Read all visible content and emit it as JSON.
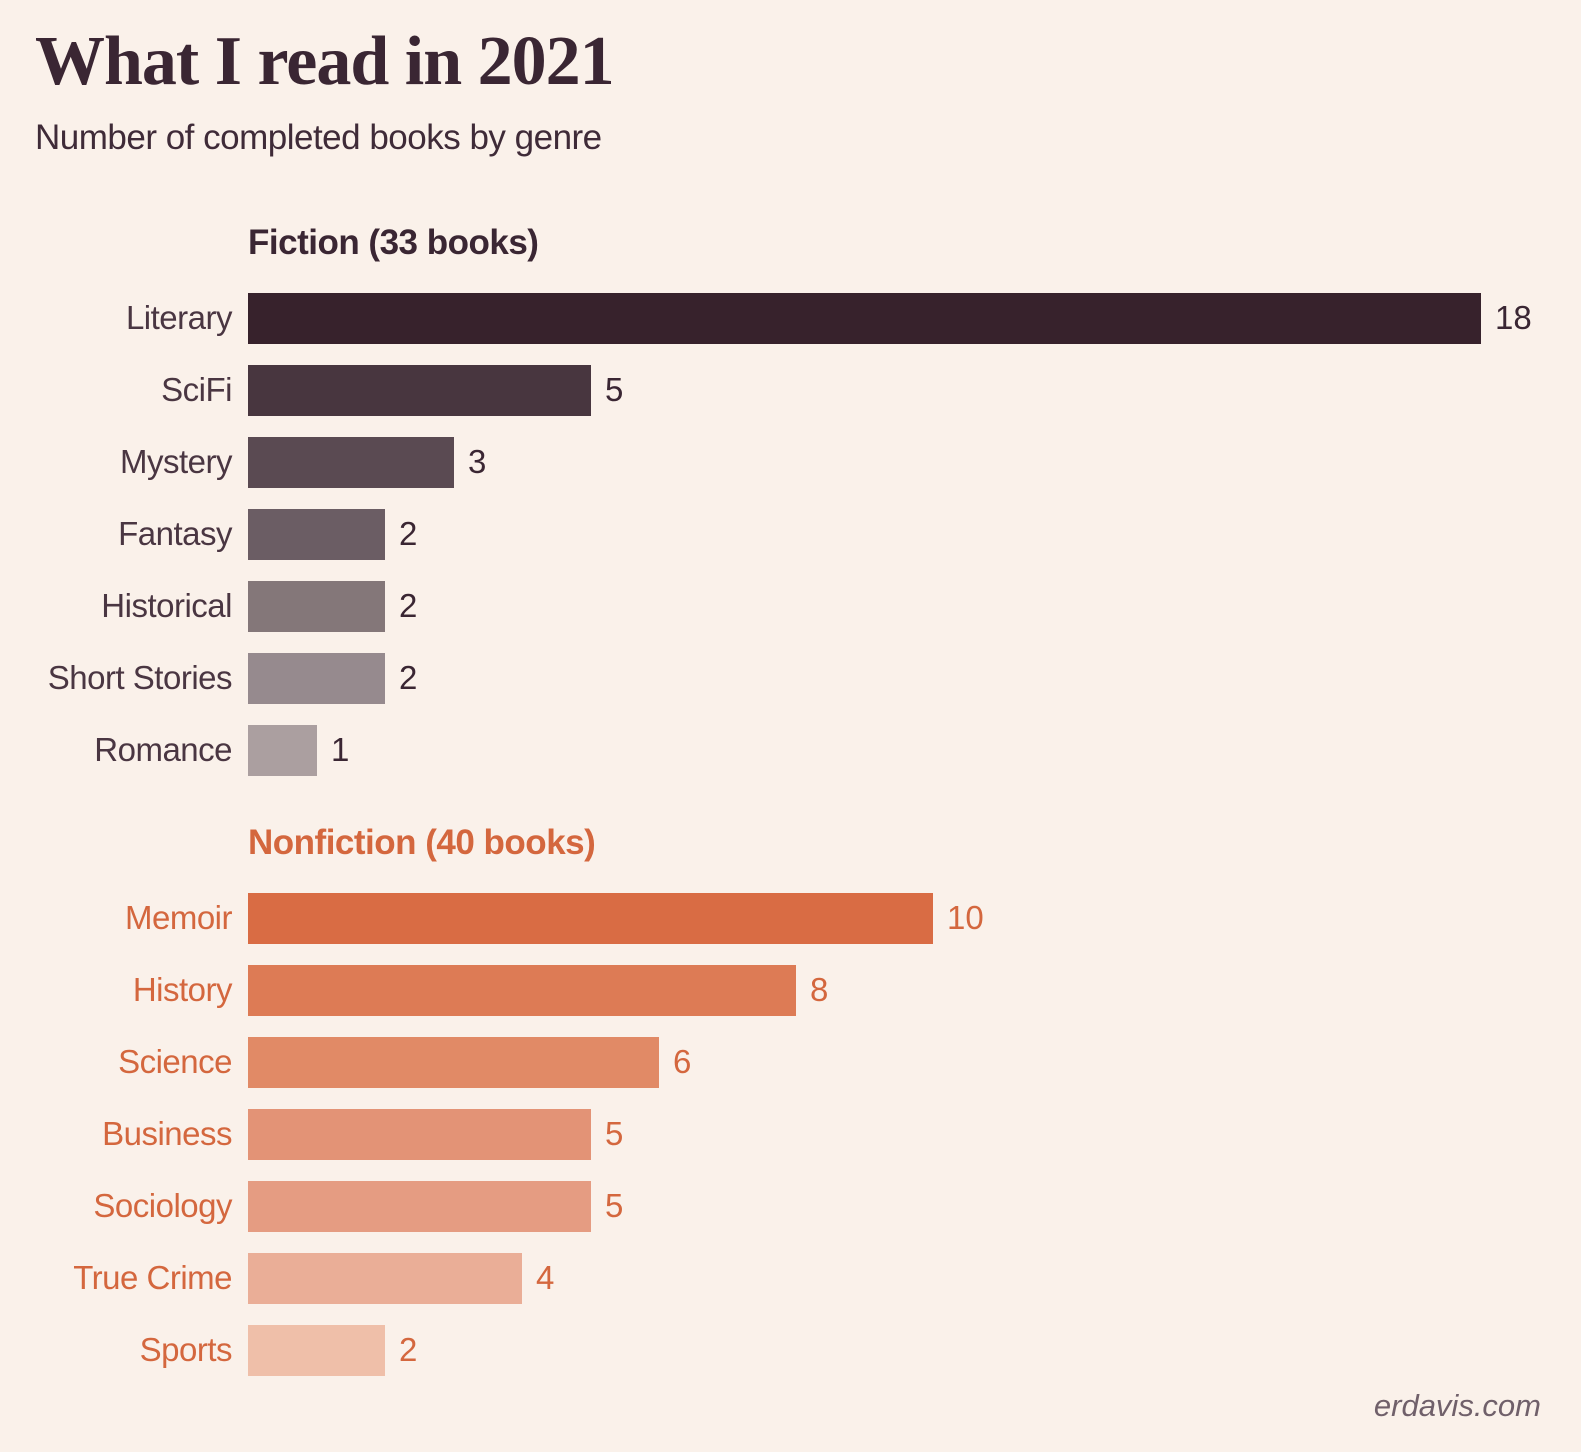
{
  "page": {
    "background": "#faf1ea",
    "title": "What I read in 2021",
    "title_color": "#3a2633",
    "subtitle": "Number of completed books by genre",
    "subtitle_color": "#3f2b38",
    "footer": "erdavis.com",
    "footer_color": "#70606a"
  },
  "chart_data": {
    "type": "bar",
    "orientation": "horizontal",
    "title": "What I read in 2021",
    "subtitle": "Number of completed books by genre",
    "unit": "books",
    "value_axis_range": [
      0,
      18
    ],
    "grid": false,
    "legend": false,
    "sections": [
      {
        "name": "Fiction",
        "header": "Fiction (33 books)",
        "total_books": 33,
        "header_color": "#3a2633",
        "label_color": "#4a3642",
        "value_color": "#3a2633",
        "categories": [
          "Literary",
          "SciFi",
          "Mystery",
          "Fantasy",
          "Historical",
          "Short Stories",
          "Romance"
        ],
        "values": [
          18,
          5,
          3,
          2,
          2,
          2,
          1
        ],
        "bar_colors": [
          "#37222c",
          "#48363f",
          "#5a4a52",
          "#6b5d64",
          "#847779",
          "#968a8e",
          "#ab9fa0"
        ]
      },
      {
        "name": "Nonfiction",
        "header": "Nonfiction (40 books)",
        "total_books": 40,
        "header_color": "#d4673e",
        "label_color": "#d4673e",
        "value_color": "#d4673e",
        "categories": [
          "Memoir",
          "History",
          "Science",
          "Business",
          "Sociology",
          "True Crime",
          "Sports"
        ],
        "values": [
          10,
          8,
          6,
          5,
          5,
          4,
          2
        ],
        "bar_colors": [
          "#d96c44",
          "#dd7b55",
          "#e18a66",
          "#e39376",
          "#e59c82",
          "#eaae97",
          "#efbfa9"
        ]
      }
    ]
  }
}
